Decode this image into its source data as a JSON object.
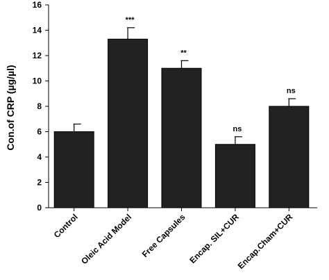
{
  "chart_data": {
    "type": "bar",
    "title": "",
    "xlabel": "",
    "ylabel": "Con.of CRP (µg/µl)",
    "ylim": [
      0,
      16
    ],
    "yticks": [
      0,
      2,
      4,
      6,
      8,
      10,
      12,
      14,
      16
    ],
    "grid": false,
    "legend": "none",
    "bar_color": "#222222",
    "categories": [
      "Control",
      "Oleic Acid Model",
      "Free Capsules",
      "Encap. SIL+CUR",
      "Encap.Cham+CUR"
    ],
    "values": [
      6.0,
      13.3,
      11.0,
      5.0,
      8.0
    ],
    "errors": [
      0.6,
      0.9,
      0.6,
      0.6,
      0.6
    ],
    "significance": [
      "",
      "***",
      "**",
      "ns",
      "ns"
    ]
  }
}
